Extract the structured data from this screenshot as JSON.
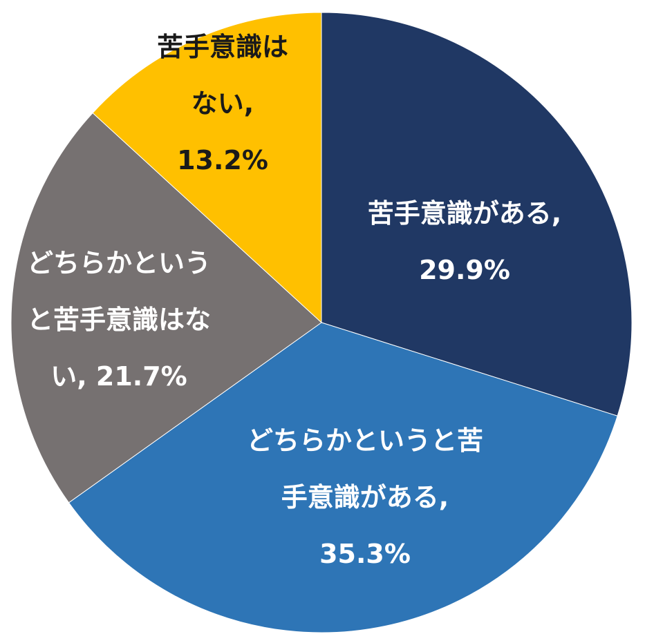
{
  "chart_data": {
    "type": "pie",
    "title": "",
    "start_angle_deg": 0,
    "direction": "clockwise",
    "slices": [
      {
        "label": "苦手意識がある",
        "value": 29.9,
        "value_text": "29.9%",
        "color": "#203864",
        "text_color": "#ffffff",
        "label_lines": [
          "苦手意識がある,",
          "29.9%"
        ]
      },
      {
        "label": "どちらかというと苦手意識がある",
        "value": 35.3,
        "value_text": "35.3%",
        "color": "#2e75b6",
        "text_color": "#ffffff",
        "label_lines": [
          "どちらかというと苦",
          "手意識がある,",
          "35.3%"
        ]
      },
      {
        "label": "どちらかというと苦手意識はない",
        "value": 21.7,
        "value_text": "21.7%",
        "color": "#767171",
        "text_color": "#ffffff",
        "label_lines": [
          "どちらかという",
          "と苦手意識はな",
          "い, 21.7%"
        ]
      },
      {
        "label": "苦手意識はない",
        "value": 13.2,
        "value_text": "13.2%",
        "color": "#ffc000",
        "text_color": "#1a1a1a",
        "label_lines": [
          "苦手意識は",
          "ない,",
          "13.2%"
        ]
      }
    ]
  }
}
